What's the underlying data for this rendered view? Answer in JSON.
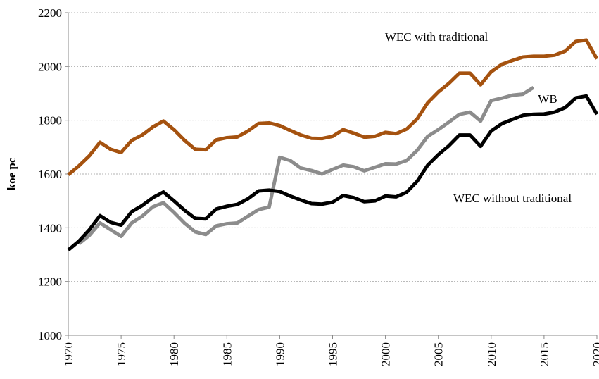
{
  "chart_data": {
    "type": "line",
    "y_label": "koe pc",
    "x": [
      1970,
      1971,
      1972,
      1973,
      1974,
      1975,
      1976,
      1977,
      1978,
      1979,
      1980,
      1981,
      1982,
      1983,
      1984,
      1985,
      1986,
      1987,
      1988,
      1989,
      1990,
      1991,
      1992,
      1993,
      1994,
      1995,
      1996,
      1997,
      1998,
      1999,
      2000,
      2001,
      2002,
      2003,
      2004,
      2005,
      2006,
      2007,
      2008,
      2009,
      2010,
      2011,
      2012,
      2013,
      2014,
      2015,
      2016,
      2017,
      2018,
      2019,
      2020
    ],
    "series": [
      {
        "name": "WEC with traditional",
        "color": "#a5520f",
        "values": [
          1597,
          1630,
          1668,
          1718,
          1692,
          1680,
          1725,
          1745,
          1775,
          1797,
          1765,
          1725,
          1692,
          1690,
          1727,
          1735,
          1738,
          1760,
          1788,
          1790,
          1780,
          1762,
          1745,
          1733,
          1732,
          1740,
          1765,
          1752,
          1737,
          1740,
          1755,
          1750,
          1767,
          1805,
          1865,
          1905,
          1937,
          1975,
          1975,
          1932,
          1980,
          2008,
          2022,
          2035,
          2038,
          2038,
          2042,
          2057,
          2093,
          2098,
          2028
        ]
      },
      {
        "name": "WB",
        "color": "#8c8c8c",
        "values": [
          null,
          1340,
          1372,
          1418,
          1393,
          1368,
          1418,
          1443,
          1478,
          1493,
          1457,
          1417,
          1385,
          1375,
          1407,
          1415,
          1418,
          1443,
          1468,
          1477,
          1662,
          1650,
          1622,
          1613,
          1600,
          1617,
          1633,
          1627,
          1612,
          1625,
          1638,
          1637,
          1650,
          1688,
          1740,
          1765,
          1793,
          1822,
          1830,
          1797,
          1873,
          1882,
          1893,
          1897,
          1922,
          null,
          null,
          null,
          null,
          null,
          null
        ]
      },
      {
        "name": "WEC without traditional",
        "color": "#000000",
        "values": [
          1317,
          1350,
          1393,
          1445,
          1420,
          1410,
          1460,
          1483,
          1512,
          1533,
          1500,
          1465,
          1435,
          1433,
          1470,
          1480,
          1487,
          1508,
          1537,
          1540,
          1535,
          1518,
          1503,
          1490,
          1488,
          1495,
          1520,
          1512,
          1497,
          1500,
          1518,
          1515,
          1532,
          1573,
          1633,
          1672,
          1705,
          1745,
          1745,
          1703,
          1760,
          1787,
          1803,
          1818,
          1822,
          1823,
          1830,
          1847,
          1883,
          1890,
          1822
        ]
      }
    ],
    "xlim": [
      1970,
      2020
    ],
    "xticks": [
      1970,
      1975,
      1980,
      1985,
      1990,
      1995,
      2000,
      2005,
      2010,
      2015,
      2020
    ],
    "ylim": [
      1000,
      2200
    ],
    "yticks": [
      1000,
      1200,
      1400,
      1600,
      1800,
      2000,
      2200
    ],
    "grid": true
  }
}
